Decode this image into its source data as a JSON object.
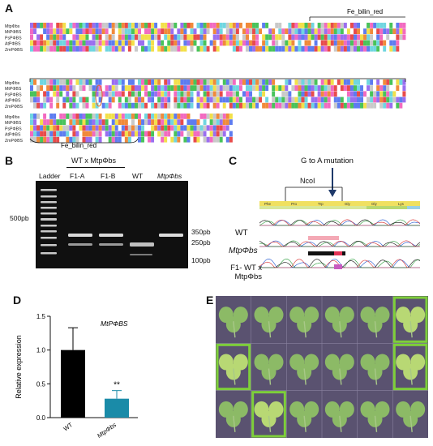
{
  "panels": {
    "a": "A",
    "b": "B",
    "c": "C",
    "d": "D",
    "e": "E"
  },
  "alignment": {
    "species": [
      "MtpΦbs",
      "MtPΦBS",
      "PsPΦBS",
      "AtPΦBS",
      "ZmPΦBS"
    ],
    "domain_label_top": "Fe_bilin_red",
    "domain_label_bottom": "Fe_bilin_red"
  },
  "gel": {
    "ladder_label": "Ladder",
    "group_label": "WT x MtpΦbs",
    "lanes": [
      "F1-A",
      "F1-B",
      "WT",
      "MtpΦbs"
    ],
    "left_marker": "500pb",
    "size_labels": [
      "350pb",
      "250pb",
      "100pb"
    ]
  },
  "chromatogram": {
    "mutation_title": "G to A mutation",
    "site_label": "NcoI",
    "tracks": [
      "WT",
      "MtpΦbs",
      "F1- WT x MtpΦbs"
    ],
    "codons": [
      "Phe",
      "Pro",
      "Trp",
      "Gly",
      "Gly",
      "Lys"
    ]
  },
  "chart_data": {
    "type": "bar",
    "title": "MtPΦBS",
    "ylabel": "Relative expression",
    "categories": [
      "WT",
      "MtpΦbs"
    ],
    "values": [
      1.0,
      0.28
    ],
    "errors": [
      0.33,
      0.12
    ],
    "ylim": [
      0,
      1.5
    ],
    "yticks": [
      "0.0",
      "0.5",
      "1.0",
      "1.5"
    ],
    "significance": "**",
    "colors": [
      "#000000",
      "#1a8ba8"
    ]
  },
  "leaves": {
    "rows": 3,
    "cols": 6,
    "highlighted": [
      [
        0,
        5
      ],
      [
        1,
        0
      ],
      [
        1,
        5
      ],
      [
        2,
        1
      ]
    ],
    "grid_color": "#5a5270",
    "highlight_color": "#7ecf3a"
  }
}
